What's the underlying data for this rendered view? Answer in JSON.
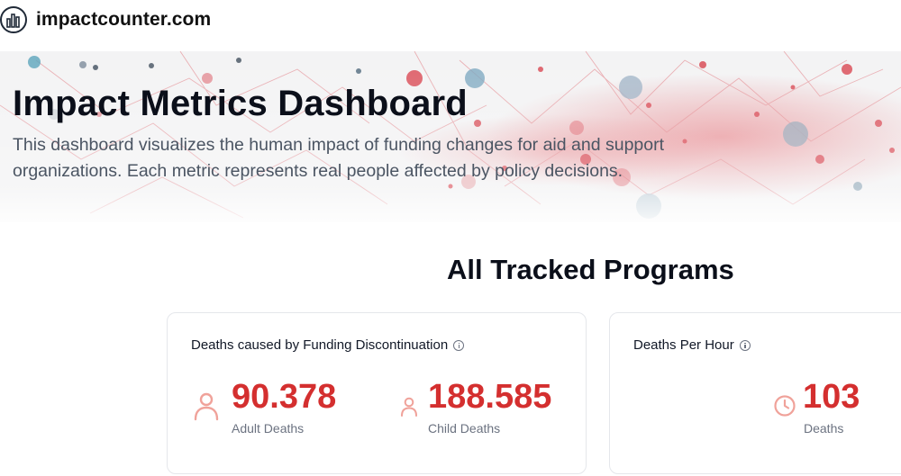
{
  "site": {
    "logo_icon": "bar-chart-circle-icon",
    "name": "impactcounter.com"
  },
  "hero": {
    "title": "Impact Metrics Dashboard",
    "description": "This dashboard visualizes the human impact of funding changes for aid and support organizations. Each metric represents real people affected by policy decisions."
  },
  "section": {
    "title": "All Tracked Programs"
  },
  "cards": [
    {
      "title": "Deaths caused by Funding Discontinuation",
      "info_icon": "info-icon",
      "metrics": [
        {
          "icon": "person-icon",
          "value": "90.378",
          "label": "Adult Deaths"
        },
        {
          "icon": "person-small-icon",
          "value": "188.585",
          "label": "Child Deaths"
        }
      ]
    },
    {
      "title": "Deaths Per Hour",
      "info_icon": "info-icon",
      "metrics": [
        {
          "icon": "clock-icon",
          "value": "103",
          "label": "Deaths"
        }
      ]
    }
  ],
  "colors": {
    "accent_red": "#d42f2f",
    "icon_red": "#f0a29a",
    "text_dark": "#0b0f1a",
    "text_muted": "#6b7280"
  }
}
